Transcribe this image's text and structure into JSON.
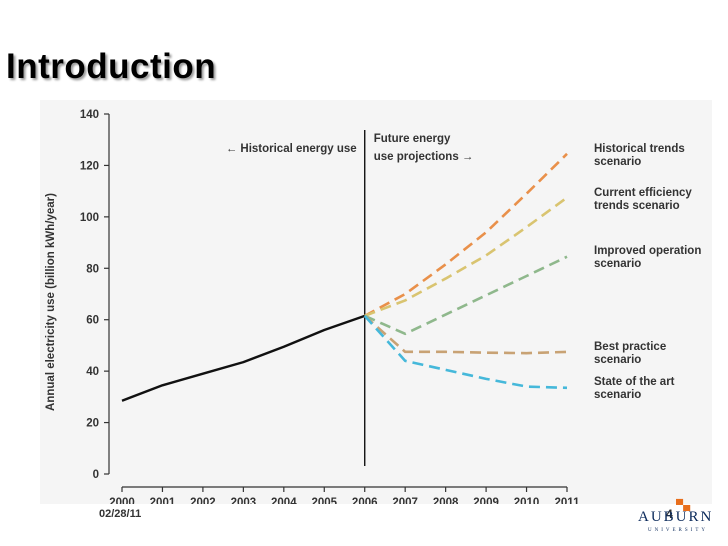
{
  "slide": {
    "title": "Introduction",
    "date": "02/28/11",
    "page_number": "4"
  },
  "logo": {
    "name": "AUBURN",
    "sub": "UNIVERSITY",
    "mark": "▀▄"
  },
  "colors": {
    "historical": "#111111",
    "historical_trends": "#e9904a",
    "current_efficiency": "#d9c470",
    "improved_operation": "#8fb88c",
    "best_practice": "#c8a274",
    "state_of_art": "#45b8da"
  },
  "chart_data": {
    "type": "line",
    "ylabel": "Annual electricity use (billion kWh/year)",
    "xlabel": "",
    "ylim": [
      0,
      140
    ],
    "yticks": [
      0,
      20,
      40,
      60,
      80,
      100,
      120,
      140
    ],
    "xlim": [
      2000,
      2011
    ],
    "xticks": [
      "2000",
      "2001",
      "2002",
      "2003",
      "2004",
      "2005",
      "2006",
      "2007",
      "2008",
      "2009",
      "2010",
      "2011"
    ],
    "divider_year": 2006,
    "annotations": {
      "historical": "← Historical energy use",
      "future_line1": "Future energy",
      "future_line2": "use projections →"
    },
    "series": [
      {
        "key": "historical",
        "name": "Historical energy use",
        "dashed": false,
        "x": [
          2000,
          2001,
          2002,
          2003,
          2004,
          2005,
          2006
        ],
        "values": [
          28.5,
          34.5,
          39,
          43.5,
          49.5,
          56,
          61.5
        ]
      },
      {
        "key": "historical_trends",
        "name_line1": "Historical trends",
        "name_line2": "scenario",
        "dashed": true,
        "x": [
          2006,
          2007,
          2008,
          2009,
          2010,
          2011
        ],
        "values": [
          61.5,
          70,
          81.5,
          94,
          109,
          124.5
        ]
      },
      {
        "key": "current_efficiency",
        "name_line1": "Current efficiency",
        "name_line2": "trends scenario",
        "dashed": true,
        "x": [
          2006,
          2007,
          2008,
          2009,
          2010,
          2011
        ],
        "values": [
          61.5,
          67.5,
          76,
          85,
          96,
          107.5
        ]
      },
      {
        "key": "improved_operation",
        "name_line1": "Improved operation",
        "name_line2": "scenario",
        "dashed": true,
        "x": [
          2006,
          2007,
          2008,
          2009,
          2010,
          2011
        ],
        "values": [
          61.5,
          54.5,
          62,
          69.5,
          77,
          84.5
        ]
      },
      {
        "key": "best_practice",
        "name_line1": "Best practice",
        "name_line2": "scenario",
        "dashed": true,
        "x": [
          2006,
          2007,
          2008,
          2009,
          2010,
          2011
        ],
        "values": [
          61.5,
          47.5,
          47.5,
          47.2,
          47,
          47.5
        ]
      },
      {
        "key": "state_of_art",
        "name_line1": "State of the art",
        "name_line2": "scenario",
        "dashed": true,
        "x": [
          2006,
          2007,
          2008,
          2009,
          2010,
          2011
        ],
        "values": [
          61.5,
          44,
          40.5,
          37,
          34,
          33.5
        ]
      }
    ]
  }
}
